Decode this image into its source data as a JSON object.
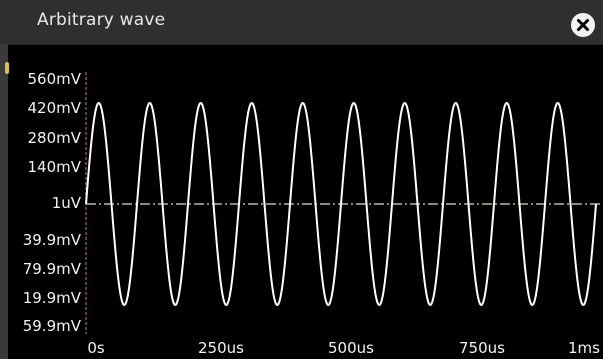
{
  "window": {
    "title": "Arbitrary wave",
    "close_icon": "close-icon"
  },
  "chart_data": {
    "type": "line",
    "y_tick_labels": [
      "560mV",
      "420mV",
      "280mV",
      "140mV",
      "1uV",
      "39.9mV",
      "79.9mV",
      "19.9mV",
      "59.9mV"
    ],
    "x_tick_labels": [
      "0s",
      "250us",
      "500us",
      "750us",
      "1ms"
    ],
    "x_range": [
      0,
      1
    ],
    "cycles": 10,
    "amplitude_mV": 450,
    "offset": "1uV",
    "waveform": "sine",
    "grid": false,
    "colors": {
      "trace": "#ffffff",
      "center_line": "#e8d9b0",
      "axis": "#c98b3a"
    }
  }
}
